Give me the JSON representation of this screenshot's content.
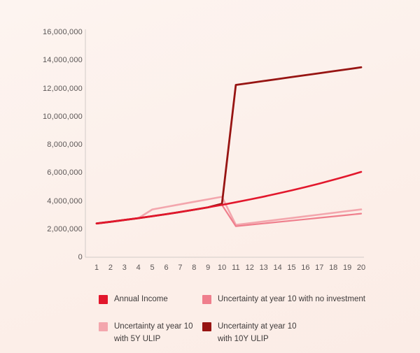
{
  "chart_data": {
    "type": "line",
    "title": "",
    "xlabel": "",
    "ylabel": "",
    "x": [
      1,
      2,
      3,
      4,
      5,
      6,
      7,
      8,
      9,
      10,
      11,
      12,
      13,
      14,
      15,
      16,
      17,
      18,
      19,
      20
    ],
    "ylim": [
      0,
      16000000
    ],
    "ytick_step": 2000000,
    "grid": false,
    "legend_position": "bottom",
    "series": [
      {
        "name": "Annual Income",
        "color": "#e2172c",
        "values": [
          2400000,
          2520000,
          2646000,
          2778000,
          2917000,
          3063000,
          3216000,
          3377000,
          3546000,
          3723000,
          3909000,
          4105000,
          4310000,
          4526000,
          4752000,
          4989000,
          5239000,
          5501000,
          5776000,
          6065000
        ]
      },
      {
        "name": "Uncertainty at year 10 with no investment",
        "color": "#ef7e8c",
        "values": [
          2400000,
          2520000,
          2646000,
          2778000,
          2917000,
          3063000,
          3216000,
          3377000,
          3546000,
          3723000,
          2200000,
          2300000,
          2400000,
          2500000,
          2600000,
          2700000,
          2800000,
          2900000,
          3000000,
          3100000
        ]
      },
      {
        "name": "Uncertainty at year 10 with 5Y ULIP",
        "color": "#f3a6ad",
        "values": [
          2400000,
          2520000,
          2646000,
          2778000,
          3400000,
          3580000,
          3760000,
          3940000,
          4120000,
          4300000,
          2300000,
          2422000,
          2544000,
          2667000,
          2789000,
          2911000,
          3033000,
          3156000,
          3278000,
          3400000
        ]
      },
      {
        "name": "Uncertainty at year 10 with 10Y ULIP",
        "color": "#971412",
        "values": [
          2400000,
          2520000,
          2646000,
          2778000,
          2917000,
          3063000,
          3216000,
          3377000,
          3546000,
          3800000,
          12250000,
          12389000,
          12528000,
          12667000,
          12806000,
          12944000,
          13083000,
          13222000,
          13361000,
          13500000
        ]
      }
    ]
  },
  "legend": {
    "items": [
      {
        "label": "Annual Income",
        "color": "#e2172c"
      },
      {
        "label": "Uncertainty at year 10 with no investment",
        "color": "#ef7e8c"
      },
      {
        "label": "Uncertainty at year 10\nwith 5Y ULIP",
        "color": "#f3a6ad"
      },
      {
        "label": "Uncertainty at year 10\nwith 10Y ULIP",
        "color": "#971412"
      }
    ]
  }
}
